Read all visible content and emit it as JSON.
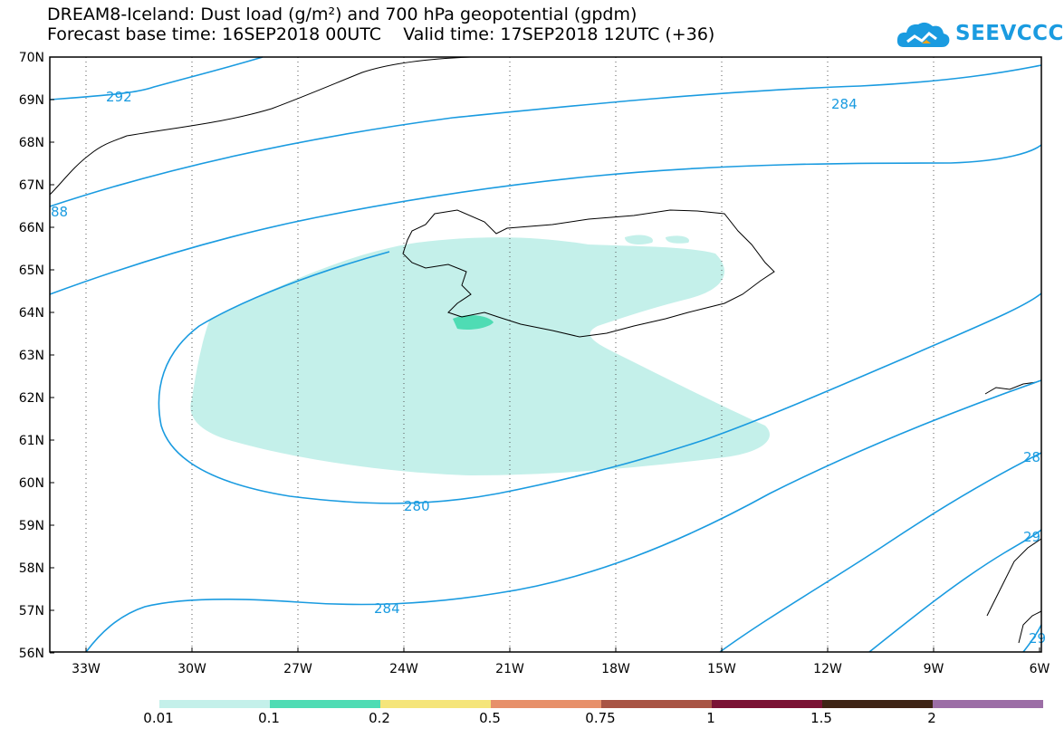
{
  "title": {
    "line1": "DREAM8-Iceland: Dust load (g/m²) and 700 hPa geopotential (gpdm)",
    "line2": "Forecast base time: 16SEP2018 00UTC    Valid time: 17SEP2018 12UTC (+36)"
  },
  "logo": {
    "text": "SEEVCCC",
    "icon": "cloud-icon",
    "color": "#1a9be0"
  },
  "axes": {
    "lat_labels": [
      "70N",
      "69N",
      "68N",
      "67N",
      "66N",
      "65N",
      "64N",
      "63N",
      "62N",
      "61N",
      "60N",
      "59N",
      "58N",
      "57N",
      "56N"
    ],
    "lon_labels": [
      "33W",
      "30W",
      "27W",
      "24W",
      "21W",
      "18W",
      "15W",
      "12W",
      "9W",
      "6W"
    ]
  },
  "contours": {
    "color": "#1a9be0",
    "labels": [
      "292",
      "284",
      "88",
      "280",
      "284",
      "28",
      "29",
      "29"
    ]
  },
  "colorbar": {
    "labels": [
      "0.01",
      "0.1",
      "0.2",
      "0.5",
      "0.75",
      "1",
      "1.5",
      "2"
    ],
    "colors": [
      "#c4f0ea",
      "#4fdcb4",
      "#f5e57a",
      "#e7906a",
      "#a85444",
      "#7a1234",
      "#3e2415",
      "#9c6ea6"
    ]
  }
}
